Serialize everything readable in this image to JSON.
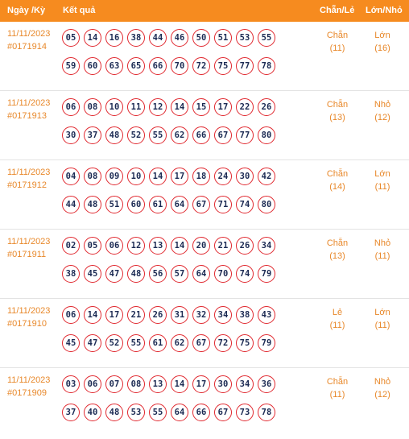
{
  "header": {
    "date_label": "Ngày /Kỳ",
    "result_label": "Kết quả",
    "chanle_label": "Chẵn/Lẻ",
    "lonnho_label": "Lớn/Nhỏ"
  },
  "colors": {
    "header_bg": "#f68b1f",
    "accent_text": "#e8882a",
    "ball_border": "#e0272e",
    "ball_text": "#1b2a53"
  },
  "rows": [
    {
      "date": "11/11/2023",
      "ky": "#0171914",
      "line1": [
        "05",
        "14",
        "16",
        "38",
        "44",
        "46",
        "50",
        "51",
        "53",
        "55"
      ],
      "line2": [
        "59",
        "60",
        "63",
        "65",
        "66",
        "70",
        "72",
        "75",
        "77",
        "78"
      ],
      "chanle": "Chẵn",
      "chanle_count": "(11)",
      "lonnho": "Lớn",
      "lonnho_count": "(16)"
    },
    {
      "date": "11/11/2023",
      "ky": "#0171913",
      "line1": [
        "06",
        "08",
        "10",
        "11",
        "12",
        "14",
        "15",
        "17",
        "22",
        "26"
      ],
      "line2": [
        "30",
        "37",
        "48",
        "52",
        "55",
        "62",
        "66",
        "67",
        "77",
        "80"
      ],
      "chanle": "Chẵn",
      "chanle_count": "(13)",
      "lonnho": "Nhỏ",
      "lonnho_count": "(12)"
    },
    {
      "date": "11/11/2023",
      "ky": "#0171912",
      "line1": [
        "04",
        "08",
        "09",
        "10",
        "14",
        "17",
        "18",
        "24",
        "30",
        "42"
      ],
      "line2": [
        "44",
        "48",
        "51",
        "60",
        "61",
        "64",
        "67",
        "71",
        "74",
        "80"
      ],
      "chanle": "Chẵn",
      "chanle_count": "(14)",
      "lonnho": "Lớn",
      "lonnho_count": "(11)"
    },
    {
      "date": "11/11/2023",
      "ky": "#0171911",
      "line1": [
        "02",
        "05",
        "06",
        "12",
        "13",
        "14",
        "20",
        "21",
        "26",
        "34"
      ],
      "line2": [
        "38",
        "45",
        "47",
        "48",
        "56",
        "57",
        "64",
        "70",
        "74",
        "79"
      ],
      "chanle": "Chẵn",
      "chanle_count": "(13)",
      "lonnho": "Nhỏ",
      "lonnho_count": "(11)"
    },
    {
      "date": "11/11/2023",
      "ky": "#0171910",
      "line1": [
        "06",
        "14",
        "17",
        "21",
        "26",
        "31",
        "32",
        "34",
        "38",
        "43"
      ],
      "line2": [
        "45",
        "47",
        "52",
        "55",
        "61",
        "62",
        "67",
        "72",
        "75",
        "79"
      ],
      "chanle": "Lẻ",
      "chanle_count": "(11)",
      "lonnho": "Lớn",
      "lonnho_count": "(11)"
    },
    {
      "date": "11/11/2023",
      "ky": "#0171909",
      "line1": [
        "03",
        "06",
        "07",
        "08",
        "13",
        "14",
        "17",
        "30",
        "34",
        "36"
      ],
      "line2": [
        "37",
        "40",
        "48",
        "53",
        "55",
        "64",
        "66",
        "67",
        "73",
        "78"
      ],
      "chanle": "Chẵn",
      "chanle_count": "(11)",
      "lonnho": "Nhỏ",
      "lonnho_count": "(12)"
    }
  ]
}
